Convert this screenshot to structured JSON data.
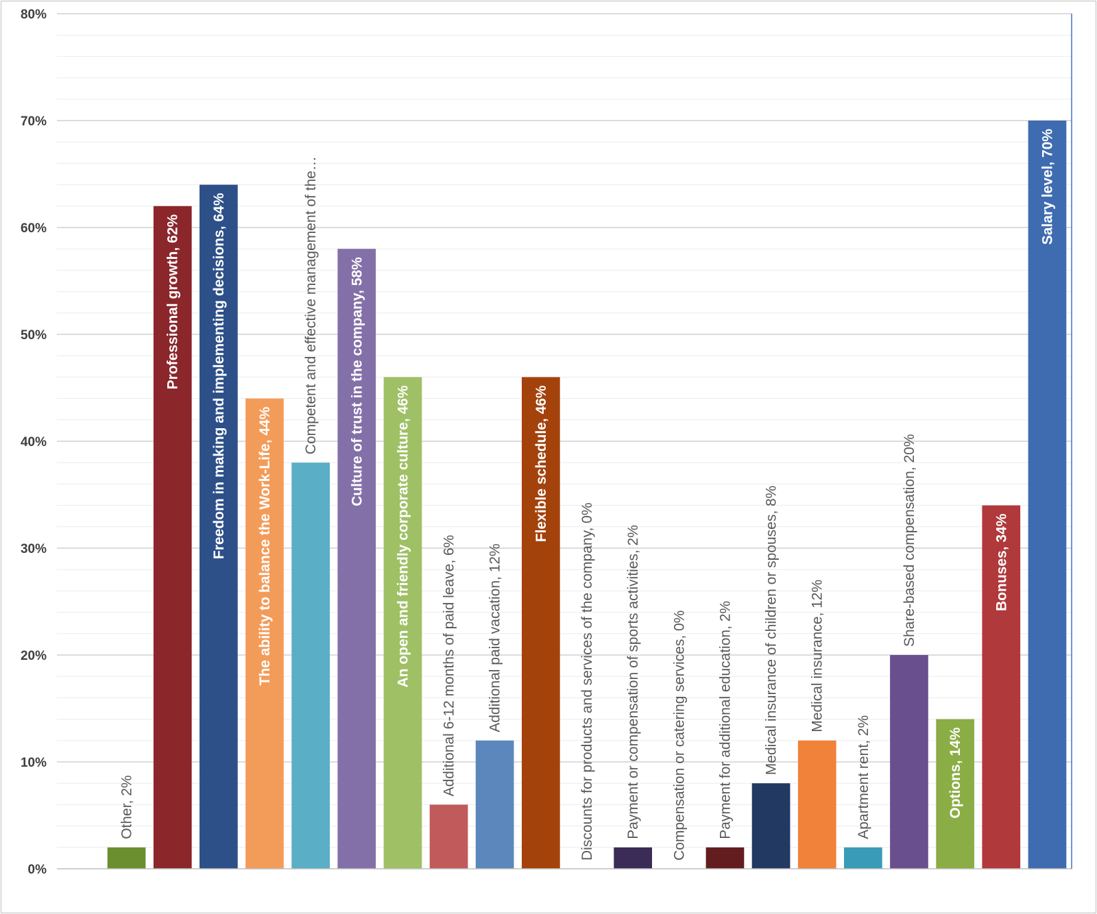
{
  "chart_data": {
    "type": "bar",
    "title": "",
    "xlabel": "",
    "ylabel": "",
    "ylim": [
      0,
      0.8
    ],
    "y_tick_values": [
      0,
      0.1,
      0.2,
      0.3,
      0.4,
      0.5,
      0.6,
      0.7,
      0.8
    ],
    "y_tick_labels": [
      "0%",
      "10%",
      "20%",
      "30%",
      "40%",
      "50%",
      "60%",
      "70%",
      "80%"
    ],
    "grid": true,
    "legend": "none",
    "label_orientation": "vertical",
    "categories": [
      "Other",
      "Professional growth",
      "Freedom in making and implementing decisions",
      "The ability to balance the Work-Life",
      "Competent and effective management of the…",
      "Culture of trust in the company",
      "An open and friendly corporate culture",
      "Additional 6-12 months of paid leave",
      "Additional paid vacation",
      "Flexible schedule",
      "Discounts for products and services of the company",
      "Payment or compensation of sports activities",
      "Compensation or catering services",
      "Payment for additional education",
      "Medical insurance of children or spouses",
      "Medical insurance",
      "Apartment rent",
      "Share-based compensation",
      "Options",
      "Bonuses",
      "Salary level"
    ],
    "values": [
      0.02,
      0.62,
      0.64,
      0.44,
      0.38,
      0.58,
      0.46,
      0.06,
      0.12,
      0.46,
      0.0,
      0.02,
      0.0,
      0.02,
      0.08,
      0.12,
      0.02,
      0.2,
      0.14,
      0.34,
      0.7
    ],
    "data_labels": [
      "Other, 2%",
      "Professional growth, 62%",
      "Freedom in making and implementing decisions, 64%",
      "The ability to balance the Work-Life, 44%",
      "Competent and effective management of the…",
      "Culture of trust in the company, 58%",
      "An open and friendly corporate culture, 46%",
      "Additional  6-12 months of paid leave, 6%",
      "Additional paid vacation, 12%",
      "Flexible schedule, 46%",
      "Discounts for products and services of the company, 0%",
      "Payment or compensation of sports activities, 2%",
      "Compensation or catering services, 0%",
      "Payment for additional education, 2%",
      "Medical insurance of children or spouses, 8%",
      "Medical insurance, 12%",
      "Apartment rent, 2%",
      "Share-based compensation, 20%",
      "Options, 14%",
      "Bonuses, 34%",
      "Salary level, 70%"
    ],
    "colors": [
      "#6b8e2f",
      "#8b262b",
      "#2d5089",
      "#f39c5a",
      "#5aaec6",
      "#8470a8",
      "#9fc065",
      "#c05a5b",
      "#5c87bd",
      "#a4420c",
      "#7a7a7a",
      "#3a2b57",
      "#7a7a7a",
      "#631d1e",
      "#223962",
      "#f0823a",
      "#3a9bb8",
      "#6a4f8e",
      "#8bad45",
      "#b0393c",
      "#3f6cb0"
    ],
    "label_colors": [
      "#595959",
      "#ffffff",
      "#ffffff",
      "#ffffff",
      "#595959",
      "#ffffff",
      "#ffffff",
      "#595959",
      "#595959",
      "#ffffff",
      "#595959",
      "#595959",
      "#595959",
      "#595959",
      "#595959",
      "#595959",
      "#595959",
      "#595959",
      "#ffffff",
      "#ffffff",
      "#ffffff"
    ],
    "label_position": [
      "outside",
      "inside",
      "inside",
      "inside",
      "outside",
      "inside",
      "inside",
      "outside",
      "outside",
      "inside",
      "outside",
      "outside",
      "outside",
      "outside",
      "outside",
      "outside",
      "outside",
      "outside",
      "inside",
      "inside",
      "inside"
    ]
  }
}
